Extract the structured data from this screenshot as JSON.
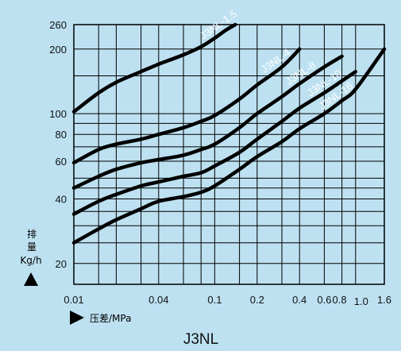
{
  "chart_data": {
    "type": "line",
    "title": "J3NL",
    "xlabel": "压差/MPa",
    "ylabel": "排量 Kg/h",
    "ylabel_line1": "排",
    "ylabel_line2": "量",
    "ylabel_line3": "Kg/h",
    "x_scale": "log",
    "y_scale": "log",
    "xlim": [
      0.01,
      1.6
    ],
    "ylim": [
      16,
      260
    ],
    "grid": true,
    "x_ticks": [
      {
        "value": 0.01,
        "label": "0.01"
      },
      {
        "value": 0.04,
        "label": "0.04"
      },
      {
        "value": 0.1,
        "label": "0.1"
      },
      {
        "value": 0.2,
        "label": "0.2"
      },
      {
        "value": 0.4,
        "label": "0.4"
      },
      {
        "value": 0.6,
        "label": "0.6"
      },
      {
        "value": 0.8,
        "label": "0.8"
      },
      {
        "value": 1.0,
        "label": "1.0"
      },
      {
        "value": 1.6,
        "label": "1.6"
      }
    ],
    "y_ticks": [
      {
        "value": 20,
        "label": "20"
      },
      {
        "value": 40,
        "label": "40"
      },
      {
        "value": 60,
        "label": "60"
      },
      {
        "value": 80,
        "label": "80"
      },
      {
        "value": 100,
        "label": "100"
      },
      {
        "value": 200,
        "label": "200"
      },
      {
        "value": 260,
        "label": "260"
      }
    ],
    "x_grid": [
      0.01,
      0.015,
      0.02,
      0.03,
      0.04,
      0.06,
      0.08,
      0.1,
      0.15,
      0.2,
      0.3,
      0.4,
      0.6,
      0.8,
      1.0,
      1.6
    ],
    "y_grid": [
      20,
      25,
      30,
      35,
      40,
      45,
      50,
      60,
      70,
      80,
      90,
      100,
      150,
      200,
      260
    ],
    "series": [
      {
        "name": "J3NL-1.5",
        "x": [
          0.01,
          0.015,
          0.02,
          0.03,
          0.04,
          0.06,
          0.08,
          0.1,
          0.12,
          0.14
        ],
        "y": [
          102,
          125,
          140,
          157,
          170,
          188,
          205,
          225,
          245,
          260
        ]
      },
      {
        "name": "J3NL-4",
        "x": [
          0.01,
          0.015,
          0.02,
          0.03,
          0.04,
          0.06,
          0.08,
          0.1,
          0.15,
          0.2,
          0.3,
          0.4
        ],
        "y": [
          59,
          68,
          72,
          76,
          80,
          86,
          92,
          98,
          117,
          136,
          165,
          200
        ]
      },
      {
        "name": "J3NL-8",
        "x": [
          0.01,
          0.015,
          0.02,
          0.03,
          0.04,
          0.06,
          0.08,
          0.1,
          0.15,
          0.2,
          0.3,
          0.4,
          0.6,
          0.8
        ],
        "y": [
          45,
          51,
          55,
          59,
          61,
          64,
          68,
          72,
          86,
          100,
          120,
          138,
          165,
          185
        ]
      },
      {
        "name": "J3NL-10",
        "x": [
          0.01,
          0.015,
          0.02,
          0.03,
          0.04,
          0.06,
          0.08,
          0.1,
          0.15,
          0.2,
          0.3,
          0.4,
          0.6,
          0.8,
          1.0
        ],
        "y": [
          34,
          39,
          42,
          46,
          48,
          51,
          53,
          57,
          66,
          76,
          92,
          106,
          125,
          142,
          157
        ]
      },
      {
        "name": "J3NL-16",
        "x": [
          0.01,
          0.015,
          0.02,
          0.03,
          0.04,
          0.06,
          0.08,
          0.1,
          0.15,
          0.2,
          0.3,
          0.4,
          0.6,
          0.8,
          1.0,
          1.6
        ],
        "y": [
          25,
          29,
          32,
          36,
          39,
          41,
          43,
          46,
          55,
          63,
          74,
          85,
          100,
          115,
          130,
          200
        ]
      }
    ]
  }
}
